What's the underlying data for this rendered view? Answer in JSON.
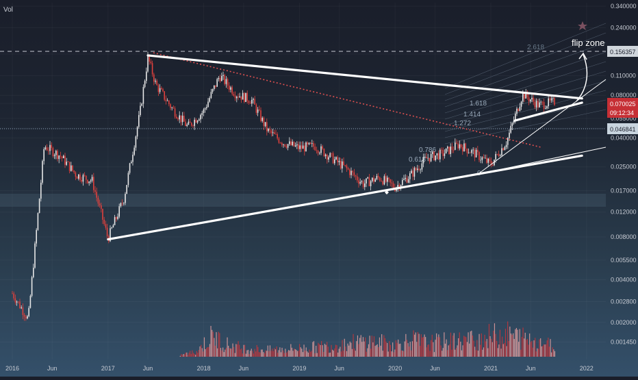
{
  "header": {
    "indicator_label": "Vol"
  },
  "price_badges": {
    "resistance": "0.156357",
    "current_price": "0.070025",
    "countdown": "09:12:34",
    "support": "0.046841"
  },
  "annotations": {
    "flip_zone": "flip zone",
    "fib_labels": [
      "1.618",
      "1.414",
      "1.272",
      "0.786",
      "0.618",
      "0"
    ],
    "fib_faint_top": "2.618"
  },
  "colors": {
    "candle_up": "#e8e8e8",
    "candle_down": "#e0413d",
    "trendline": "#ffffff",
    "dotted_trend": "#e05050",
    "current_badge": "#c62f35",
    "support_badge": "#c8d4de",
    "volume": "#c8353a"
  },
  "chart_data": {
    "type": "line",
    "y_scale": "log",
    "ylim": [
      0.00125,
      0.36
    ],
    "x_ticks": [
      "2016",
      "Jun",
      "2017",
      "Jun",
      "2018",
      "Jun",
      "2019",
      "Jun",
      "2020",
      "Jun",
      "2021",
      "Jun",
      "2022"
    ],
    "y_ticks": [
      "0.340000",
      "0.240000",
      "0.156357",
      "0.110000",
      "0.080000",
      "0.070025",
      "0.055000",
      "0.046841",
      "0.040000",
      "0.025000",
      "0.017000",
      "0.012000",
      "0.008000",
      "0.005500",
      "0.004000",
      "0.002800",
      "0.002000",
      "0.001450"
    ],
    "series": [
      {
        "x": [
          "2016-01",
          "2016-03",
          "2016-05",
          "2016-07",
          "2016-09",
          "2016-11",
          "2017-01",
          "2017-03",
          "2017-05",
          "2017-06",
          "2017-07",
          "2017-09",
          "2017-11",
          "2018-01",
          "2018-03",
          "2018-05",
          "2018-07",
          "2018-09",
          "2018-11",
          "2019-01",
          "2019-03",
          "2019-05",
          "2019-07",
          "2019-09",
          "2019-11",
          "2020-01",
          "2020-03",
          "2020-05",
          "2020-07",
          "2020-09",
          "2020-11",
          "2021-01",
          "2021-03",
          "2021-05",
          "2021-07",
          "2021-09"
        ],
        "values": [
          0.0032,
          0.0021,
          0.035,
          0.03,
          0.022,
          0.02,
          0.0078,
          0.015,
          0.06,
          0.148,
          0.095,
          0.065,
          0.048,
          0.062,
          0.11,
          0.082,
          0.074,
          0.045,
          0.037,
          0.034,
          0.035,
          0.029,
          0.024,
          0.019,
          0.021,
          0.018,
          0.022,
          0.029,
          0.031,
          0.036,
          0.031,
          0.026,
          0.038,
          0.082,
          0.068,
          0.072
        ]
      }
    ],
    "trendlines": [
      {
        "from": [
          "2017-06",
          0.153
        ],
        "to": [
          "2021-09",
          0.076
        ]
      },
      {
        "from": [
          "2017-01",
          0.0077
        ],
        "to": [
          "2021-09",
          0.03
        ]
      },
      {
        "from": [
          "2021-04",
          0.053
        ],
        "to": [
          "2021-09",
          0.071
        ]
      }
    ],
    "volume": {
      "x": [
        "2017-10",
        "2017-12",
        "2018-02",
        "2018-04",
        "2018-06",
        "2018-09",
        "2019-01",
        "2019-04",
        "2019-07",
        "2019-10",
        "2020-01",
        "2020-03",
        "2020-05",
        "2020-08",
        "2020-11",
        "2021-01",
        "2021-03",
        "2021-05",
        "2021-07",
        "2021-09"
      ],
      "relative": [
        0.05,
        0.15,
        0.6,
        0.35,
        0.25,
        0.2,
        0.25,
        0.3,
        0.4,
        0.45,
        0.35,
        0.5,
        0.4,
        0.45,
        0.5,
        0.6,
        0.65,
        0.55,
        0.45,
        0.3
      ]
    }
  }
}
